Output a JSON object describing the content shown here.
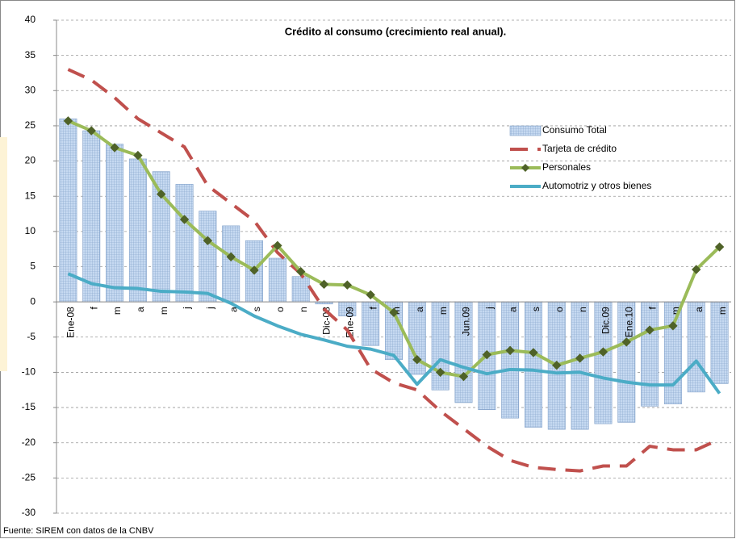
{
  "chart_data": {
    "type": "bar",
    "title": "Crédito al consumo (crecimiento real anual).",
    "source": "Fuente: SIREM con datos de la CNBV",
    "categories": [
      "Ene-08",
      "f",
      "m",
      "a",
      "m",
      "j",
      "j",
      "a",
      "s",
      "o",
      "n",
      "Dic-08",
      "Ene-09",
      "f",
      "m",
      "a",
      "m",
      "Jun.09",
      "j",
      "a",
      "s",
      "o",
      "n",
      "Dic.09",
      "Ene.10",
      "f",
      "m",
      "a",
      "m"
    ],
    "ylim": [
      -30,
      40
    ],
    "yticks": [
      -30,
      -25,
      -20,
      -15,
      -10,
      -5,
      0,
      5,
      10,
      15,
      20,
      25,
      30,
      35,
      40
    ],
    "grid": true,
    "legend": "right",
    "series": [
      {
        "name": "Consumo Total",
        "type": "bar",
        "color": "#b8cce4",
        "values": [
          26,
          24.3,
          22.4,
          20.3,
          18.5,
          16.7,
          12.9,
          10.8,
          8.7,
          6.2,
          3.6,
          -0.3,
          -2,
          -6.2,
          -8.2,
          -10.3,
          -12.5,
          -14.3,
          -15.3,
          -16.5,
          -17.8,
          -18.1,
          -18.1,
          -17.3,
          -17.1,
          -14.8,
          -14.5,
          -12.8,
          -11.6
        ]
      },
      {
        "name": "Tarjeta de crédito",
        "type": "line",
        "dashed": true,
        "color": "#c0504d",
        "values": [
          33,
          31.5,
          29,
          26,
          24,
          22,
          16.5,
          14,
          11.5,
          7,
          4,
          -1,
          -4,
          -9.5,
          -11.5,
          -12.5,
          -15.5,
          -18,
          -20.5,
          -22.5,
          -23.5,
          -23.8,
          -24,
          -23.3,
          -23.3,
          -20.5,
          -21,
          -21,
          -19.5
        ]
      },
      {
        "name": "Personales",
        "type": "line",
        "marker": "diamond",
        "color": "#9bbb59",
        "values": [
          25.7,
          24.3,
          21.9,
          20.8,
          15.3,
          11.7,
          8.7,
          6.4,
          4.5,
          8.0,
          4.3,
          2.5,
          2.4,
          1.0,
          -1.5,
          -8.2,
          -10,
          -10.6,
          -7.5,
          -6.9,
          -7.2,
          -9.0,
          -8.0,
          -7.1,
          -5.7,
          -4.0,
          -3.4,
          4.6,
          7.8
        ]
      },
      {
        "name": "Automotriz y otros bienes",
        "type": "line",
        "color": "#4bacc6",
        "values": [
          4.0,
          2.6,
          2.0,
          1.9,
          1.5,
          1.4,
          1.2,
          -0.2,
          -2.0,
          -3.4,
          -4.6,
          -5.4,
          -6.3,
          -6.7,
          -7.6,
          -11.7,
          -8.2,
          -9.3,
          -10.2,
          -9.6,
          -9.7,
          -10.1,
          -10.0,
          -10.8,
          -11.4,
          -11.8,
          -11.8,
          -8.4,
          -13.0
        ]
      }
    ]
  }
}
